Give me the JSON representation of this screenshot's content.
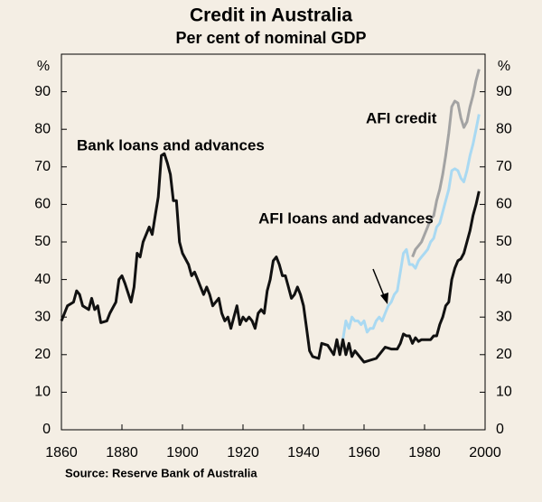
{
  "chart_data": {
    "type": "line",
    "title": "Credit in Australia",
    "subtitle": "Per cent of nominal GDP",
    "y_label": "%",
    "y2_label": "%",
    "source": "Source:  Reserve Bank of Australia",
    "xlim": [
      1860,
      2000
    ],
    "xticks": [
      1860,
      1880,
      1900,
      1920,
      1940,
      1960,
      1980,
      2000
    ],
    "ylim": [
      0,
      100
    ],
    "yticks": [
      0,
      10,
      20,
      30,
      40,
      50,
      60,
      70,
      80,
      90
    ],
    "y2lim": [
      0,
      100
    ],
    "y2ticks": [
      0,
      10,
      20,
      30,
      40,
      50,
      60,
      70,
      80,
      90
    ],
    "grid": false,
    "series": [
      {
        "name": "Bank loans and advances",
        "color": "#111111",
        "x": [
          1860,
          1862,
          1864,
          1865,
          1866,
          1867,
          1869,
          1870,
          1871,
          1872,
          1873,
          1875,
          1876,
          1878,
          1879,
          1880,
          1881,
          1883,
          1884,
          1885,
          1886,
          1887,
          1889,
          1890,
          1891,
          1892,
          1893,
          1894,
          1895,
          1896,
          1897,
          1898,
          1899,
          1900,
          1902,
          1903,
          1904,
          1905,
          1906,
          1907,
          1908,
          1909,
          1910,
          1911,
          1912,
          1913,
          1914,
          1915,
          1916,
          1917,
          1918,
          1919,
          1920,
          1921,
          1922,
          1923,
          1924,
          1925,
          1926,
          1927,
          1928,
          1929,
          1930,
          1931,
          1932,
          1933,
          1934,
          1935,
          1936,
          1937,
          1938,
          1939,
          1940,
          1941,
          1942,
          1943,
          1945,
          1946,
          1948,
          1950,
          1951,
          1952,
          1953,
          1954,
          1955,
          1956,
          1957,
          1959,
          1960,
          1962,
          1964,
          1965,
          1967,
          1969,
          1971,
          1972,
          1973,
          1974,
          1975,
          1976,
          1977,
          1978,
          1979,
          1981,
          1982,
          1983,
          1984,
          1985,
          1986,
          1987,
          1988,
          1989,
          1990,
          1991,
          1992,
          1993,
          1994,
          1995,
          1996,
          1997,
          1998
        ],
        "values": [
          29,
          33,
          34,
          37,
          36,
          33,
          32,
          35,
          32,
          33,
          28.5,
          29,
          31,
          34,
          40,
          41,
          39,
          34,
          38,
          47,
          46,
          50,
          54,
          52,
          57,
          62,
          73,
          73.5,
          71,
          68,
          61,
          61,
          50,
          47,
          44,
          41,
          42,
          40,
          38,
          36,
          38,
          36,
          33,
          34,
          35,
          31,
          29,
          30,
          27,
          30,
          33,
          28,
          30,
          29,
          30,
          29,
          27,
          31,
          32,
          31,
          37,
          40,
          45,
          46,
          44,
          41,
          41,
          38,
          35,
          36,
          38,
          36,
          33,
          27,
          21,
          19.5,
          19,
          23,
          22.5,
          20,
          24,
          20,
          24,
          20,
          23,
          19.5,
          21,
          19,
          18,
          18.5,
          19,
          20,
          22,
          21.5,
          21.5,
          23,
          25.5,
          25,
          25,
          23,
          24.5,
          23.5,
          24,
          24,
          24,
          25,
          25,
          28,
          30,
          33,
          34,
          40,
          43,
          45,
          45.5,
          47,
          50,
          53,
          57,
          60,
          63.5
        ]
      },
      {
        "name": "AFI loans and advances",
        "color": "#a9d9f2",
        "x": [
          1953,
          1954,
          1955,
          1956,
          1957,
          1958,
          1959,
          1960,
          1961,
          1962,
          1963,
          1964,
          1965,
          1966,
          1967,
          1968,
          1969,
          1970,
          1971,
          1972,
          1973,
          1974,
          1975,
          1976,
          1977,
          1978,
          1979,
          1980,
          1981,
          1982,
          1983,
          1984,
          1985,
          1986,
          1987,
          1988,
          1989,
          1990,
          1991,
          1992,
          1993,
          1994,
          1995,
          1996,
          1997,
          1998
        ],
        "values": [
          24,
          29,
          27,
          30,
          29,
          29,
          28,
          29,
          26,
          27,
          27,
          29,
          30,
          29,
          31,
          33,
          34,
          36,
          37,
          42,
          47,
          48,
          44,
          44,
          43,
          45,
          46,
          47,
          48,
          50,
          51,
          54,
          55,
          58,
          61,
          64,
          69,
          69.5,
          69,
          67,
          66,
          69,
          73,
          76,
          80,
          84
        ]
      },
      {
        "name": "AFI credit",
        "color": "#a3a3a3",
        "x": [
          1976,
          1977,
          1978,
          1979,
          1980,
          1981,
          1982,
          1983,
          1984,
          1985,
          1986,
          1987,
          1988,
          1989,
          1990,
          1991,
          1992,
          1993,
          1994,
          1995,
          1996,
          1997,
          1998
        ],
        "values": [
          46,
          48,
          49,
          50,
          52,
          54,
          56,
          57,
          61,
          64,
          68,
          73,
          79,
          86,
          87.5,
          87,
          83,
          80.5,
          82,
          86,
          89,
          93,
          96
        ]
      }
    ]
  }
}
